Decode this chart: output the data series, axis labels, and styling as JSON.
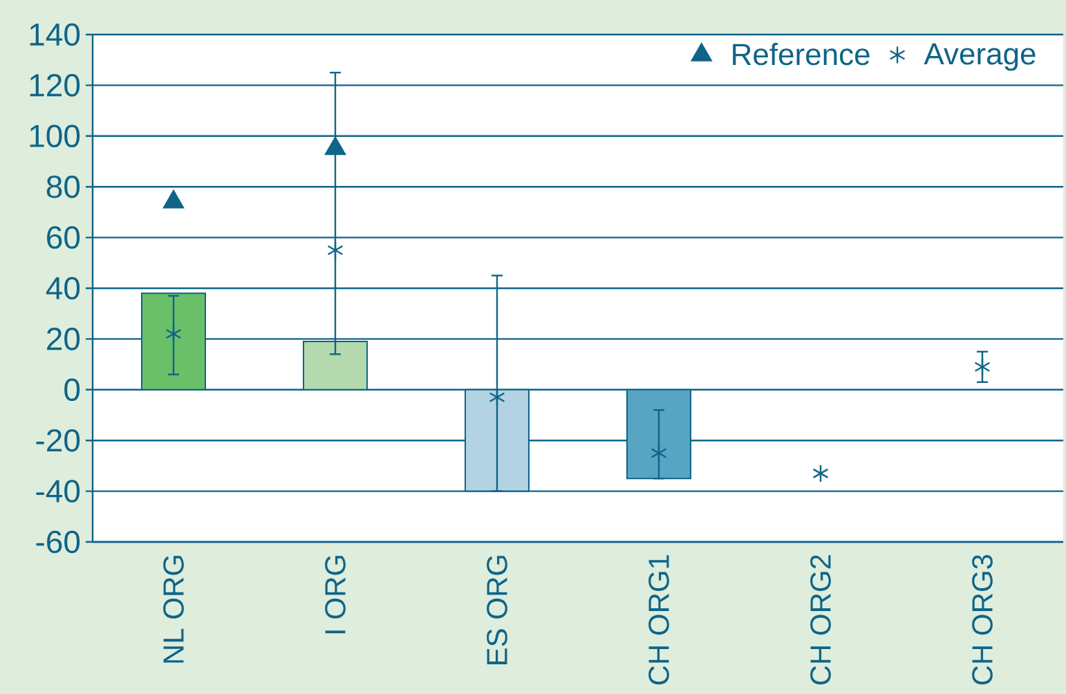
{
  "chart_data": {
    "type": "bar",
    "categories": [
      "NL ORG",
      "I ORG",
      "ES ORG",
      "CH ORG1",
      "CH ORG2",
      "CH ORG3"
    ],
    "series": [
      {
        "colors": [
          "#6abf69",
          "#b3d9ad",
          "#b3d3e3",
          "#57a4c3",
          null,
          null
        ],
        "values": [
          38,
          19,
          -40,
          -35,
          null,
          null
        ]
      },
      {
        "type": "scatter",
        "name": "Reference",
        "color": "#0f6488",
        "marker": "triangle",
        "values": [
          74,
          95,
          null,
          null,
          null,
          null
        ]
      },
      {
        "type": "scatter",
        "name": "Average",
        "color": "#0f6488",
        "marker": "cross",
        "values": [
          22,
          55,
          -3,
          -25,
          -33,
          9
        ],
        "errors": [
          [
            6,
            37
          ],
          [
            14,
            125
          ],
          [
            -40,
            45
          ],
          [
            -35,
            -8
          ],
          null,
          [
            3,
            15
          ]
        ]
      }
    ],
    "ylim": [
      -60,
      140
    ],
    "yticks": [
      -60,
      -40,
      -20,
      0,
      20,
      40,
      60,
      80,
      100,
      120,
      140
    ],
    "grid": "y",
    "legend": "top right"
  }
}
